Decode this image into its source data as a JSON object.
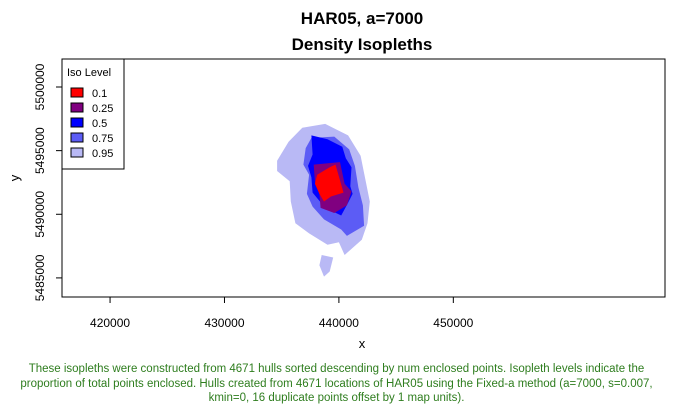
{
  "chart_data": {
    "type": "area",
    "title": "HAR05, a=7000",
    "subtitle": "Density Isopleths",
    "xlabel": "x",
    "ylabel": "y",
    "xlim": [
      415800,
      468500
    ],
    "ylim": [
      5483500,
      5502200
    ],
    "x_ticks": [
      420000,
      430000,
      440000,
      450000
    ],
    "y_ticks": [
      5485000,
      5490000,
      5495000,
      5500000
    ],
    "x_tick_labels": [
      "420000",
      "430000",
      "440000",
      "450000"
    ],
    "y_tick_labels": [
      "5485000",
      "5490000",
      "5495000",
      "5500000"
    ],
    "grid": false,
    "legend": {
      "title": "Iso Level",
      "placement": "top-left",
      "entries": [
        {
          "label": "0.1",
          "color": "#ff0000"
        },
        {
          "label": "0.25",
          "color": "#800080"
        },
        {
          "label": "0.5",
          "color": "#0000ff"
        },
        {
          "label": "0.75",
          "color": "#5c5cf5"
        },
        {
          "label": "0.95",
          "color": "#b9b9f5"
        }
      ]
    },
    "series": [
      {
        "name": "0.95",
        "color": "#b9b9f5",
        "polygons": [
          [
            [
              436800,
              5496800
            ],
            [
              438800,
              5497100
            ],
            [
              440800,
              5496200
            ],
            [
              441900,
              5494600
            ],
            [
              442300,
              5492800
            ],
            [
              442700,
              5491000
            ],
            [
              442500,
              5489300
            ],
            [
              442000,
              5488000
            ],
            [
              440500,
              5486800
            ],
            [
              440000,
              5487800
            ],
            [
              439000,
              5487600
            ],
            [
              437400,
              5488500
            ],
            [
              436200,
              5489300
            ],
            [
              435800,
              5491000
            ],
            [
              435700,
              5492600
            ],
            [
              434600,
              5493400
            ],
            [
              434600,
              5494200
            ],
            [
              435600,
              5495700
            ]
          ],
          [
            [
              438500,
              5486800
            ],
            [
              439500,
              5486600
            ],
            [
              439200,
              5485500
            ],
            [
              438700,
              5485100
            ],
            [
              438300,
              5486000
            ]
          ]
        ]
      },
      {
        "name": "0.75",
        "color": "#5c5cf5",
        "polygons": [
          [
            [
              437600,
              5496000
            ],
            [
              439600,
              5496100
            ],
            [
              440900,
              5495100
            ],
            [
              441400,
              5493800
            ],
            [
              441700,
              5492100
            ],
            [
              442100,
              5490700
            ],
            [
              442200,
              5489100
            ],
            [
              440700,
              5488300
            ],
            [
              440200,
              5488800
            ],
            [
              438700,
              5489600
            ],
            [
              437700,
              5490600
            ],
            [
              437200,
              5491600
            ],
            [
              437400,
              5493100
            ],
            [
              436900,
              5493900
            ],
            [
              437100,
              5495200
            ]
          ]
        ]
      },
      {
        "name": "0.5",
        "color": "#0000ff",
        "polygons": [
          [
            [
              437600,
              5496200
            ],
            [
              439000,
              5495900
            ],
            [
              440300,
              5495300
            ],
            [
              440600,
              5494400
            ],
            [
              441100,
              5493700
            ],
            [
              441000,
              5492200
            ],
            [
              441200,
              5491600
            ],
            [
              440800,
              5490900
            ],
            [
              440200,
              5489900
            ],
            [
              438800,
              5490500
            ],
            [
              437700,
              5491700
            ],
            [
              437600,
              5492900
            ],
            [
              437300,
              5493800
            ],
            [
              437700,
              5494700
            ]
          ]
        ]
      },
      {
        "name": "0.25",
        "color": "#800080",
        "polygons": [
          [
            [
              437800,
              5493900
            ],
            [
              440100,
              5494100
            ],
            [
              440500,
              5492400
            ],
            [
              441100,
              5491800
            ],
            [
              440700,
              5490700
            ],
            [
              439600,
              5490100
            ],
            [
              438400,
              5490500
            ],
            [
              438300,
              5491600
            ],
            [
              437900,
              5492600
            ]
          ]
        ]
      },
      {
        "name": "0.1",
        "color": "#ff0000",
        "polygons": [
          [
            [
              438100,
              5493100
            ],
            [
              439200,
              5493700
            ],
            [
              439700,
              5493900
            ],
            [
              440400,
              5491700
            ],
            [
              439300,
              5491400
            ],
            [
              438700,
              5491000
            ],
            [
              438300,
              5491600
            ],
            [
              437900,
              5492400
            ]
          ]
        ]
      }
    ]
  },
  "caption": "These isopleths were constructed from 4671 hulls sorted descending by num enclosed points. Isopleth levels indicate the proportion of total points enclosed. Hulls created from 4671 locations of HAR05 using the Fixed-a method (a=7000, s=0.007, kmin=0, 16 duplicate points offset by 1 map units)."
}
